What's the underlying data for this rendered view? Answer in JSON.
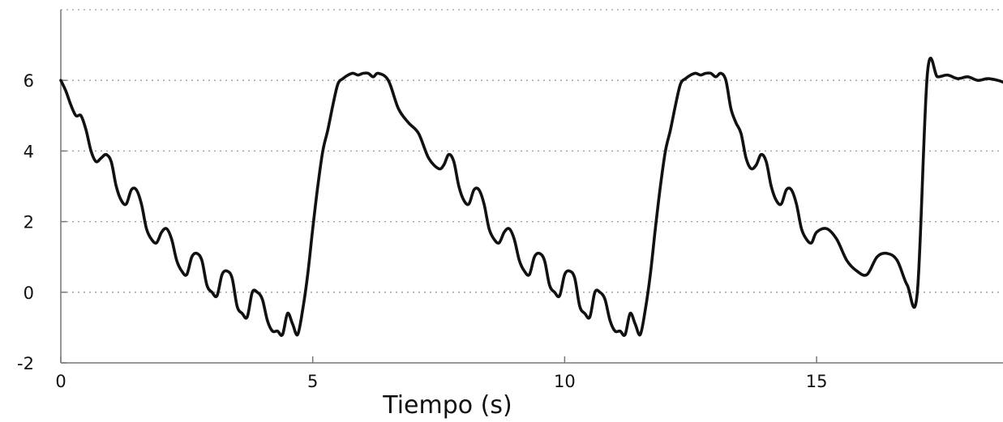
{
  "chart_data": {
    "type": "line",
    "title": "",
    "xlabel": "Tiempo (s)",
    "ylabel": "",
    "xlim": [
      0,
      18.7
    ],
    "ylim": [
      -2,
      8
    ],
    "x_ticks": [
      0,
      5,
      10,
      15
    ],
    "x_tick_labels": [
      "0",
      "5",
      "10",
      "15"
    ],
    "y_ticks": [
      -2,
      0,
      2,
      4,
      6
    ],
    "y_tick_labels": [
      "-2",
      "0",
      "2",
      "4",
      "6"
    ],
    "grid": {
      "horizontal": true,
      "vertical": false
    },
    "colors": {
      "line": "#111111",
      "grid": "#9a9a9a",
      "axis": "#777777"
    },
    "series": [
      {
        "x": [
          0,
          0.1,
          0.2,
          0.3,
          0.4,
          0.5,
          0.6,
          0.7,
          0.8,
          0.9,
          1.0,
          1.1,
          1.2,
          1.3,
          1.4,
          1.5,
          1.6,
          1.7,
          1.8,
          1.9,
          2.0,
          2.1,
          2.2,
          2.3,
          2.4,
          2.5,
          2.6,
          2.7,
          2.8,
          2.9,
          3.0,
          3.1,
          3.2,
          3.3,
          3.4,
          3.5,
          3.6,
          3.7,
          3.8,
          3.9,
          4.0,
          4.1,
          4.2,
          4.3,
          4.4,
          4.5,
          4.6,
          4.7,
          4.8,
          4.9,
          5.0,
          5.1,
          5.2,
          5.3,
          5.4,
          5.5,
          5.6,
          5.7,
          5.8,
          5.9,
          6.0,
          6.1,
          6.2,
          6.3,
          6.5,
          6.7,
          6.9,
          7.1,
          7.3,
          7.5,
          7.6,
          7.7,
          7.8,
          7.9,
          8.0,
          8.1,
          8.2,
          8.3,
          8.4,
          8.5,
          8.6,
          8.7,
          8.8,
          8.9,
          9.0,
          9.1,
          9.2,
          9.3,
          9.4,
          9.5,
          9.6,
          9.7,
          9.8,
          9.9,
          10.0,
          10.1,
          10.2,
          10.3,
          10.4,
          10.5,
          10.6,
          10.7,
          10.8,
          10.9,
          11.0,
          11.1,
          11.2,
          11.3,
          11.4,
          11.5,
          11.6,
          11.7,
          11.8,
          11.9,
          12.0,
          12.1,
          12.2,
          12.3,
          12.4,
          12.5,
          12.6,
          12.7,
          12.8,
          12.9,
          13.0,
          13.1,
          13.2,
          13.3,
          13.4,
          13.5,
          13.6,
          13.7,
          13.8,
          13.9,
          14.0,
          14.1,
          14.2,
          14.3,
          14.4,
          14.5,
          14.6,
          14.7,
          14.8,
          14.9,
          15.0,
          15.2,
          15.4,
          15.6,
          15.8,
          16.0,
          16.2,
          16.4,
          16.6,
          16.8,
          17.0,
          17.2,
          17.4,
          17.6,
          17.8,
          18.0,
          18.2,
          18.4,
          18.6,
          18.7
        ],
        "y": [
          6.0,
          5.7,
          5.3,
          5.0,
          5.0,
          4.6,
          4.0,
          3.7,
          3.8,
          3.9,
          3.7,
          3.0,
          2.6,
          2.5,
          2.9,
          2.9,
          2.5,
          1.8,
          1.5,
          1.4,
          1.7,
          1.8,
          1.5,
          0.9,
          0.6,
          0.5,
          1.0,
          1.1,
          0.9,
          0.2,
          0.0,
          -0.1,
          0.5,
          0.6,
          0.4,
          -0.4,
          -0.6,
          -0.7,
          0.0,
          0.0,
          -0.2,
          -0.8,
          -1.1,
          -1.1,
          -1.2,
          -0.6,
          -0.9,
          -1.2,
          -0.5,
          0.5,
          1.8,
          3.0,
          4.0,
          4.6,
          5.3,
          5.9,
          6.05,
          6.15,
          6.2,
          6.15,
          6.2,
          6.2,
          6.1,
          6.2,
          6.0,
          5.2,
          4.8,
          4.5,
          3.8,
          3.5,
          3.6,
          3.9,
          3.7,
          3.0,
          2.6,
          2.5,
          2.9,
          2.9,
          2.5,
          1.8,
          1.5,
          1.4,
          1.7,
          1.8,
          1.5,
          0.9,
          0.6,
          0.5,
          1.0,
          1.1,
          0.9,
          0.2,
          0.0,
          -0.1,
          0.5,
          0.6,
          0.4,
          -0.4,
          -0.6,
          -0.7,
          0.0,
          0.0,
          -0.2,
          -0.8,
          -1.1,
          -1.1,
          -1.2,
          -0.6,
          -0.9,
          -1.2,
          -0.5,
          0.5,
          1.8,
          3.0,
          4.0,
          4.6,
          5.3,
          5.9,
          6.05,
          6.15,
          6.2,
          6.15,
          6.2,
          6.2,
          6.1,
          6.2,
          6.0,
          5.2,
          4.8,
          4.5,
          3.8,
          3.5,
          3.6,
          3.9,
          3.7,
          3.0,
          2.6,
          2.5,
          2.9,
          2.9,
          2.5,
          1.8,
          1.5,
          1.4,
          1.7,
          1.8,
          1.5,
          0.9,
          0.6,
          0.5,
          1.0,
          1.1,
          0.9,
          0.2,
          0.0,
          6.2,
          6.1,
          6.15,
          6.05,
          6.1,
          6.0,
          6.05,
          6.0,
          5.95
        ]
      }
    ]
  }
}
